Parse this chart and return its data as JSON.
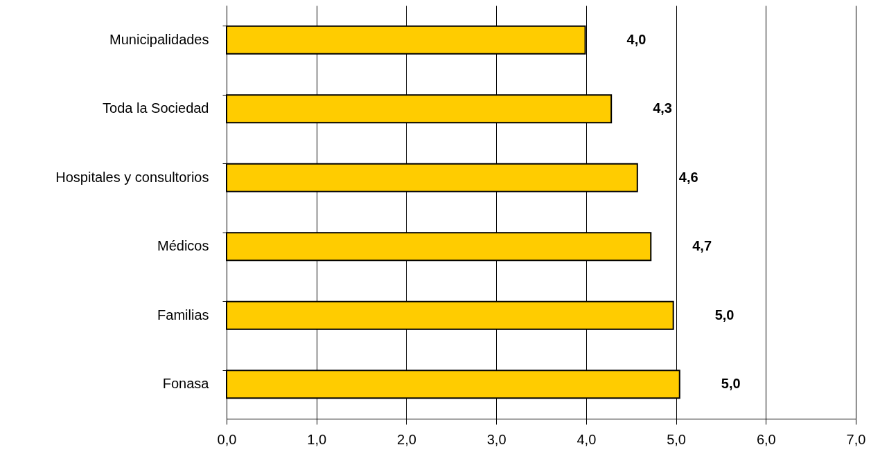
{
  "chart_data": {
    "type": "bar",
    "orientation": "horizontal",
    "categories": [
      "Municipalidades",
      "Toda la Sociedad",
      "Hospitales y consultorios",
      "Médicos",
      "Familias",
      "Fonasa"
    ],
    "values": [
      3.99,
      4.28,
      4.57,
      4.72,
      4.97,
      5.04
    ],
    "value_labels": [
      "4,0",
      "4,3",
      "4,6",
      "4,7",
      "5,0",
      "5,0"
    ],
    "color": "#ffcc00",
    "xlim": [
      0,
      7
    ],
    "xticks": [
      {
        "value": 0,
        "label": "0,0"
      },
      {
        "value": 1,
        "label": "1,0"
      },
      {
        "value": 2,
        "label": "2,0"
      },
      {
        "value": 3,
        "label": "3,0"
      },
      {
        "value": 4,
        "label": "4,0"
      },
      {
        "value": 5,
        "label": "5,0"
      },
      {
        "value": 6,
        "label": "6,0"
      },
      {
        "value": 7,
        "label": "7,0"
      }
    ],
    "grid": "x"
  }
}
